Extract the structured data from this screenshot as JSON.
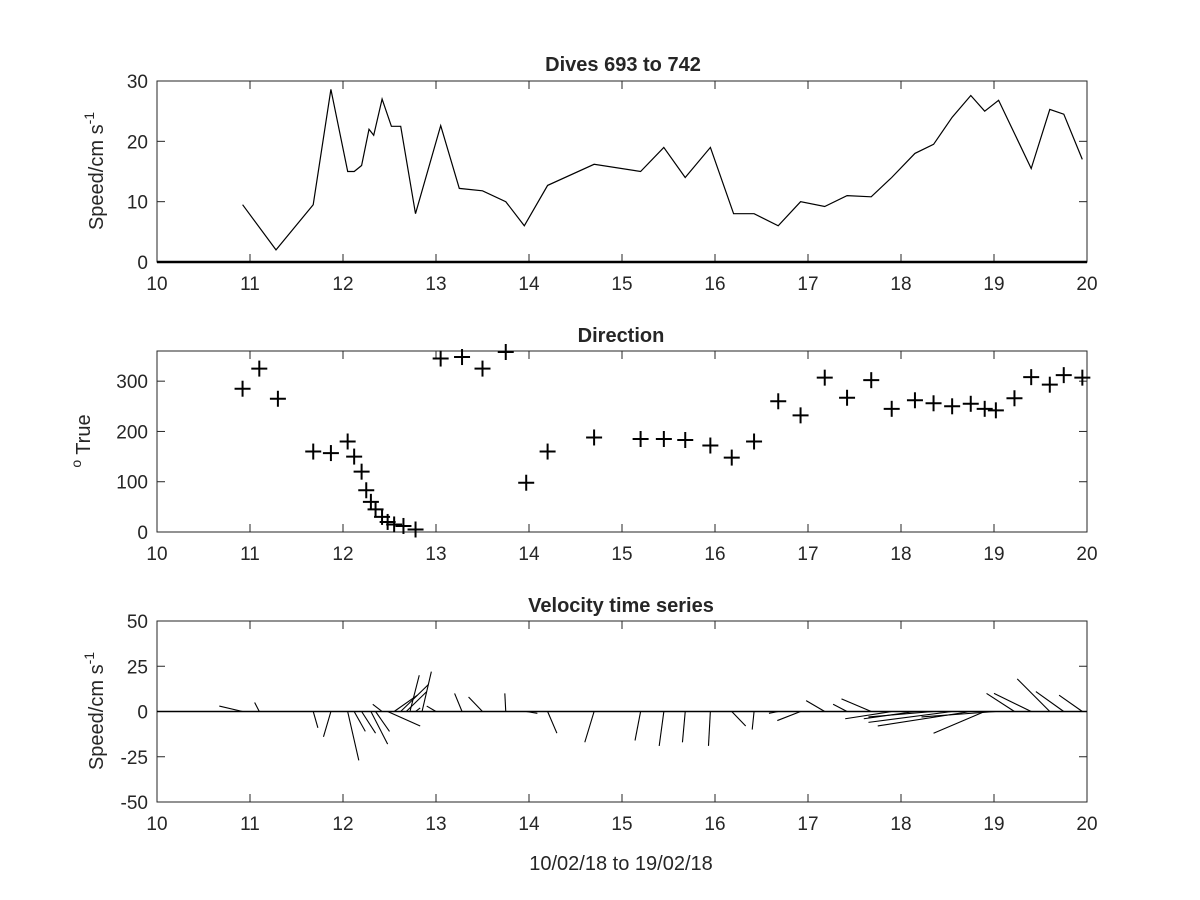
{
  "chart_data": [
    {
      "type": "line",
      "title": "Dives 693 to 742",
      "xlabel": "",
      "ylabel": "Speed/cm s",
      "ylabel_superscript": "-1",
      "xlim": [
        10,
        20
      ],
      "ylim": [
        0,
        30
      ],
      "xticks": [
        "10",
        "11",
        "12",
        "13",
        "14",
        "15",
        "16",
        "17",
        "18",
        "19",
        "20"
      ],
      "yticks": [
        "0",
        "10",
        "20",
        "30"
      ],
      "grid": false,
      "series": [
        {
          "x": [
            10.92,
            11.28,
            11.68,
            11.87,
            12.05,
            12.12,
            12.2,
            12.28,
            12.33,
            12.42,
            12.52,
            12.62,
            12.78,
            13.05,
            13.25,
            13.5,
            13.75,
            13.95,
            14.2,
            14.7,
            15.2,
            15.45,
            15.68,
            15.95,
            16.2,
            16.42,
            16.68,
            16.92,
            17.18,
            17.42,
            17.68,
            17.9,
            18.15,
            18.35,
            18.55,
            18.75,
            18.9,
            19.05,
            19.4,
            19.6,
            19.75,
            19.95
          ],
          "y": [
            9.5,
            2,
            9.5,
            28.6,
            15,
            15,
            16,
            22,
            21,
            27,
            22.5,
            22.5,
            8,
            22.6,
            12.2,
            11.8,
            10,
            6,
            12.7,
            16.2,
            15,
            19,
            14,
            19,
            8,
            8,
            6,
            10,
            9.2,
            11,
            10.8,
            14,
            18,
            19.5,
            24,
            27.6,
            25,
            26.8,
            15.5,
            25.3,
            24.5,
            17
          ]
        }
      ]
    },
    {
      "type": "scatter",
      "title": "Direction",
      "xlabel": "",
      "ylabel": "True",
      "ylabel_prefix": "o",
      "xlim": [
        10,
        20
      ],
      "ylim": [
        0,
        360
      ],
      "xticks": [
        "10",
        "11",
        "12",
        "13",
        "14",
        "15",
        "16",
        "17",
        "18",
        "19",
        "20"
      ],
      "yticks": [
        "0",
        "100",
        "200",
        "300"
      ],
      "grid": false,
      "marker": "+",
      "series": [
        {
          "x": [
            10.92,
            11.1,
            11.3,
            11.68,
            11.87,
            12.05,
            12.12,
            12.2,
            12.25,
            12.3,
            12.35,
            12.42,
            12.48,
            12.55,
            12.65,
            12.78,
            13.05,
            13.28,
            13.5,
            13.75,
            13.97,
            14.2,
            14.7,
            15.2,
            15.45,
            15.68,
            15.95,
            16.18,
            16.42,
            16.68,
            16.92,
            17.18,
            17.42,
            17.68,
            17.9,
            18.15,
            18.35,
            18.55,
            18.75,
            18.9,
            19.02,
            19.22,
            19.4,
            19.6,
            19.75,
            19.95
          ],
          "y": [
            285,
            325,
            265,
            160,
            157,
            180,
            150,
            120,
            83,
            60,
            45,
            30,
            20,
            15,
            12,
            5,
            345,
            348,
            325,
            358,
            98,
            160,
            188,
            185,
            185,
            183,
            172,
            148,
            180,
            260,
            232,
            307,
            267,
            302,
            245,
            262,
            256,
            250,
            255,
            245,
            242,
            266,
            308,
            293,
            312,
            307
          ]
        }
      ]
    },
    {
      "type": "line",
      "title": "Velocity time series",
      "xlabel": "10/02/18 to 19/02/18",
      "ylabel": "Speed/cm s",
      "ylabel_superscript": "-1",
      "xlim": [
        10,
        20
      ],
      "ylim": [
        -50,
        50
      ],
      "xticks": [
        "10",
        "11",
        "12",
        "13",
        "14",
        "15",
        "16",
        "17",
        "18",
        "19",
        "20"
      ],
      "yticks": [
        "-50",
        "-25",
        "0",
        "25",
        "50"
      ],
      "grid": false,
      "style": "stick-plot",
      "sticks": [
        {
          "t": 10.92,
          "dx": -0.25,
          "dy": 3
        },
        {
          "t": 11.1,
          "dx": -0.05,
          "dy": 5
        },
        {
          "t": 11.68,
          "dx": 0.05,
          "dy": -9
        },
        {
          "t": 11.87,
          "dx": -0.08,
          "dy": -14
        },
        {
          "t": 12.05,
          "dx": 0.12,
          "dy": -27
        },
        {
          "t": 12.12,
          "dx": 0.12,
          "dy": -11
        },
        {
          "t": 12.2,
          "dx": 0.15,
          "dy": -12
        },
        {
          "t": 12.3,
          "dx": 0.18,
          "dy": -18
        },
        {
          "t": 12.35,
          "dx": 0.15,
          "dy": -11
        },
        {
          "t": 12.42,
          "dx": -0.1,
          "dy": 4
        },
        {
          "t": 12.48,
          "dx": 0.35,
          "dy": -8
        },
        {
          "t": 12.55,
          "dx": 0.25,
          "dy": 9
        },
        {
          "t": 12.62,
          "dx": 0.3,
          "dy": 15
        },
        {
          "t": 12.68,
          "dx": 0.22,
          "dy": 11
        },
        {
          "t": 12.72,
          "dx": 0.1,
          "dy": 20
        },
        {
          "t": 12.78,
          "dx": 0.05,
          "dy": 2
        },
        {
          "t": 12.85,
          "dx": 0.1,
          "dy": 22
        },
        {
          "t": 13.0,
          "dx": -0.1,
          "dy": 3
        },
        {
          "t": 13.28,
          "dx": -0.08,
          "dy": 10
        },
        {
          "t": 13.5,
          "dx": -0.15,
          "dy": 8
        },
        {
          "t": 13.75,
          "dx": -0.01,
          "dy": 10
        },
        {
          "t": 13.97,
          "dx": 0.12,
          "dy": -1
        },
        {
          "t": 14.2,
          "dx": 0.1,
          "dy": -12
        },
        {
          "t": 14.7,
          "dx": -0.1,
          "dy": -17
        },
        {
          "t": 15.2,
          "dx": -0.06,
          "dy": -16
        },
        {
          "t": 15.45,
          "dx": -0.05,
          "dy": -19
        },
        {
          "t": 15.68,
          "dx": -0.03,
          "dy": -17
        },
        {
          "t": 15.95,
          "dx": -0.02,
          "dy": -19
        },
        {
          "t": 16.18,
          "dx": 0.15,
          "dy": -8
        },
        {
          "t": 16.42,
          "dx": -0.02,
          "dy": -10
        },
        {
          "t": 16.68,
          "dx": -0.1,
          "dy": -1
        },
        {
          "t": 16.92,
          "dx": -0.25,
          "dy": -5
        },
        {
          "t": 17.18,
          "dx": -0.2,
          "dy": 6
        },
        {
          "t": 17.42,
          "dx": -0.15,
          "dy": 4
        },
        {
          "t": 17.68,
          "dx": -0.32,
          "dy": 7
        },
        {
          "t": 17.9,
          "dx": -0.5,
          "dy": -4
        },
        {
          "t": 18.15,
          "dx": -0.55,
          "dy": -4
        },
        {
          "t": 18.35,
          "dx": -0.7,
          "dy": -3
        },
        {
          "t": 18.55,
          "dx": -0.9,
          "dy": -6
        },
        {
          "t": 18.75,
          "dx": -1.0,
          "dy": -8
        },
        {
          "t": 18.9,
          "dx": -0.55,
          "dy": -12
        },
        {
          "t": 19.02,
          "dx": -0.8,
          "dy": -3
        },
        {
          "t": 19.22,
          "dx": -0.3,
          "dy": 10
        },
        {
          "t": 19.4,
          "dx": -0.4,
          "dy": 10
        },
        {
          "t": 19.6,
          "dx": -0.35,
          "dy": 18
        },
        {
          "t": 19.75,
          "dx": -0.3,
          "dy": 11
        },
        {
          "t": 19.95,
          "dx": -0.25,
          "dy": 9
        }
      ]
    }
  ]
}
